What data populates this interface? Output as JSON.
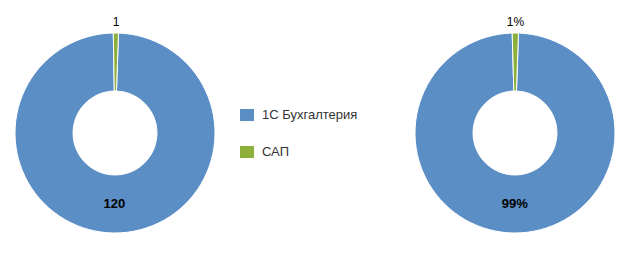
{
  "chart_data": [
    {
      "type": "pie",
      "categories": [
        "1С Бухгалтерия",
        "САП"
      ],
      "values": [
        120,
        1
      ],
      "colors": [
        "#5B8EC5",
        "#8DB03D"
      ],
      "data_labels": true,
      "legend": "right"
    },
    {
      "type": "pie",
      "categories": [
        "1С Бухгалтерия",
        "САП"
      ],
      "values": [
        99,
        1
      ],
      "value_labels": [
        "99%",
        "1%"
      ],
      "colors": [
        "#5B8EC5",
        "#8DB03D"
      ],
      "data_labels": true
    }
  ]
}
